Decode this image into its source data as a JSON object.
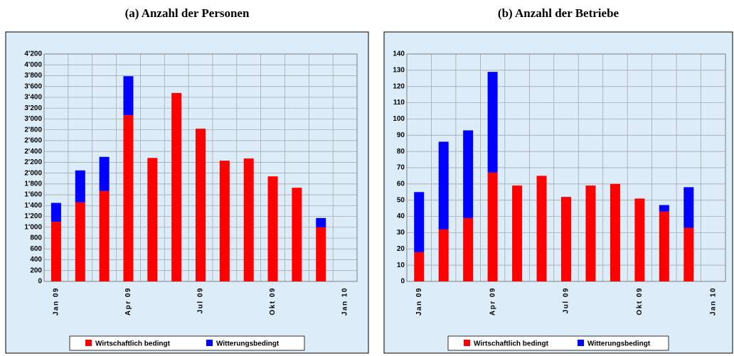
{
  "chart_data": [
    {
      "type": "bar",
      "stacked": true,
      "title": "(a) Anzahl der Personen",
      "categories": [
        "Jan 09",
        null,
        null,
        "Apr 09",
        null,
        null,
        "Jul 09",
        null,
        null,
        "Okt 09",
        null,
        null,
        "Jan 10"
      ],
      "series": [
        {
          "name": "Wirtschaftlich bedingt",
          "color": "#ff0000",
          "values": [
            1100,
            1460,
            1670,
            3070,
            2280,
            3480,
            2820,
            2230,
            2270,
            1940,
            1730,
            1000,
            null
          ]
        },
        {
          "name": "Witterungsbedingt",
          "color": "#0000ff",
          "values": [
            350,
            590,
            630,
            720,
            0,
            0,
            0,
            0,
            0,
            0,
            0,
            170,
            null
          ]
        }
      ],
      "ylim": [
        0,
        4200
      ],
      "yticks": [
        0,
        200,
        400,
        600,
        800,
        {
          "value": 1000,
          "label": "1'000"
        },
        {
          "value": 1200,
          "label": "1'200"
        },
        {
          "value": 1400,
          "label": "1'400"
        },
        {
          "value": 1600,
          "label": "1'600"
        },
        {
          "value": 1800,
          "label": "1'800"
        },
        {
          "value": 2000,
          "label": "2'000"
        },
        {
          "value": 2200,
          "label": "2'200"
        },
        {
          "value": 2400,
          "label": "2'400"
        },
        {
          "value": 2600,
          "label": "2'600"
        },
        {
          "value": 2800,
          "label": "2'800"
        },
        {
          "value": 3000,
          "label": "3'000"
        },
        {
          "value": 3200,
          "label": "3'200"
        },
        {
          "value": 3400,
          "label": "3'400"
        },
        {
          "value": 3600,
          "label": "3'600"
        },
        {
          "value": 3800,
          "label": "3'800"
        },
        {
          "value": 4000,
          "label": "4'000"
        },
        {
          "value": 4200,
          "label": "4'200"
        }
      ],
      "grid": true,
      "legend": "bottom"
    },
    {
      "type": "bar",
      "stacked": true,
      "title": "(b) Anzahl der Betriebe",
      "categories": [
        "Jan 09",
        null,
        null,
        "Apr 09",
        null,
        null,
        "Jul 09",
        null,
        null,
        "Okt 09",
        null,
        null,
        "Jan 10"
      ],
      "series": [
        {
          "name": "Wirtschaftlich bedingt",
          "color": "#ff0000",
          "values": [
            18,
            32,
            39,
            67,
            59,
            65,
            52,
            59,
            60,
            51,
            43,
            33,
            null
          ]
        },
        {
          "name": "Witterungsbedingt",
          "color": "#0000ff",
          "values": [
            37,
            54,
            54,
            62,
            0,
            0,
            0,
            0,
            0,
            0,
            4,
            25,
            null
          ]
        }
      ],
      "ylim": [
        0,
        140
      ],
      "yticks": [
        0,
        10,
        20,
        30,
        40,
        50,
        60,
        70,
        80,
        90,
        100,
        110,
        120,
        130,
        140
      ],
      "grid": true,
      "legend": "bottom"
    }
  ]
}
